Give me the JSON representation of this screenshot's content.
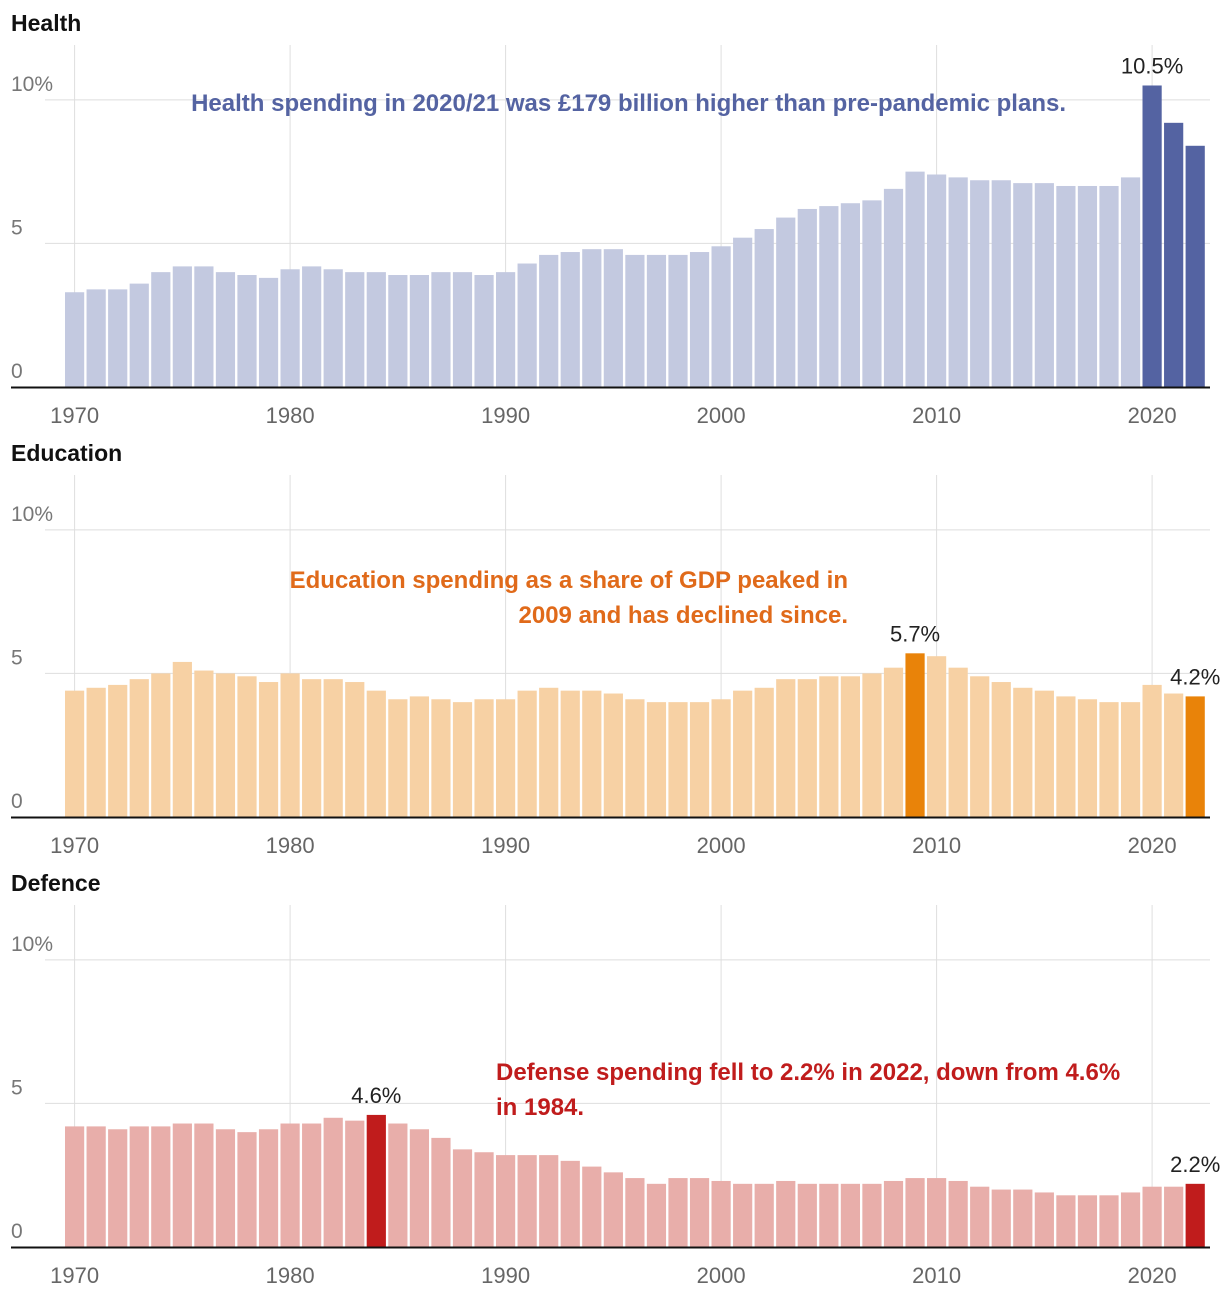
{
  "chart_data": [
    {
      "type": "bar",
      "title": "Health",
      "x": [
        1970,
        1971,
        1972,
        1973,
        1974,
        1975,
        1976,
        1977,
        1978,
        1979,
        1980,
        1981,
        1982,
        1983,
        1984,
        1985,
        1986,
        1987,
        1988,
        1989,
        1990,
        1991,
        1992,
        1993,
        1994,
        1995,
        1996,
        1997,
        1998,
        1999,
        2000,
        2001,
        2002,
        2003,
        2004,
        2005,
        2006,
        2007,
        2008,
        2009,
        2010,
        2011,
        2012,
        2013,
        2014,
        2015,
        2016,
        2017,
        2018,
        2019,
        2020,
        2021,
        2022
      ],
      "values": [
        3.3,
        3.4,
        3.4,
        3.6,
        4.0,
        4.2,
        4.2,
        4.0,
        3.9,
        3.8,
        4.1,
        4.2,
        4.1,
        4.0,
        4.0,
        3.9,
        3.9,
        4.0,
        4.0,
        3.9,
        4.0,
        4.3,
        4.6,
        4.7,
        4.8,
        4.8,
        4.6,
        4.6,
        4.6,
        4.7,
        4.9,
        5.2,
        5.5,
        5.9,
        6.2,
        6.3,
        6.4,
        6.5,
        6.9,
        7.5,
        7.4,
        7.3,
        7.2,
        7.2,
        7.1,
        7.1,
        7.0,
        7.0,
        7.0,
        7.3,
        10.5,
        9.2,
        8.4
      ],
      "highlight": [
        2020,
        2021,
        2022
      ],
      "base_color": "#c3c9e0",
      "highlight_color": "#5463a2",
      "ylim": [
        0,
        10.9
      ],
      "yticks": [
        0,
        5,
        10
      ],
      "ytick_labels": [
        "0",
        "5",
        "10%"
      ],
      "xticks": [
        1970,
        1980,
        1990,
        2000,
        2010,
        2020
      ],
      "labels": [
        {
          "year": 2020,
          "text": "10.5%"
        }
      ],
      "annotation": "Health spending in 2020/21 was £179 billion higher than pre-pandemic plans.",
      "annotation_color": "#5463a2"
    },
    {
      "type": "bar",
      "title": "Education",
      "x": [
        1970,
        1971,
        1972,
        1973,
        1974,
        1975,
        1976,
        1977,
        1978,
        1979,
        1980,
        1981,
        1982,
        1983,
        1984,
        1985,
        1986,
        1987,
        1988,
        1989,
        1990,
        1991,
        1992,
        1993,
        1994,
        1995,
        1996,
        1997,
        1998,
        1999,
        2000,
        2001,
        2002,
        2003,
        2004,
        2005,
        2006,
        2007,
        2008,
        2009,
        2010,
        2011,
        2012,
        2013,
        2014,
        2015,
        2016,
        2017,
        2018,
        2019,
        2020,
        2021,
        2022
      ],
      "values": [
        4.4,
        4.5,
        4.6,
        4.8,
        5.0,
        5.4,
        5.1,
        5.0,
        4.9,
        4.7,
        5.0,
        4.8,
        4.8,
        4.7,
        4.4,
        4.1,
        4.2,
        4.1,
        4.0,
        4.1,
        4.1,
        4.4,
        4.5,
        4.4,
        4.4,
        4.3,
        4.1,
        4.0,
        4.0,
        4.0,
        4.1,
        4.4,
        4.5,
        4.8,
        4.8,
        4.9,
        4.9,
        5.0,
        5.2,
        5.7,
        5.6,
        5.2,
        4.9,
        4.7,
        4.5,
        4.4,
        4.2,
        4.1,
        4.0,
        4.0,
        4.6,
        4.3,
        4.2
      ],
      "highlight": [
        2009,
        2022
      ],
      "base_color": "#f7d1a4",
      "highlight_color": "#e98309",
      "ylim": [
        0,
        10.9
      ],
      "yticks": [
        0,
        5,
        10
      ],
      "ytick_labels": [
        "0",
        "5",
        "10%"
      ],
      "xticks": [
        1970,
        1980,
        1990,
        2000,
        2010,
        2020
      ],
      "labels": [
        {
          "year": 2009,
          "text": "5.7%"
        },
        {
          "year": 2022,
          "text": "4.2%"
        }
      ],
      "annotation": "Education spending as a share of GDP peaked in 2009 and has declined since.",
      "annotation_color": "#e06a1a"
    },
    {
      "type": "bar",
      "title": "Defence",
      "x": [
        1970,
        1971,
        1972,
        1973,
        1974,
        1975,
        1976,
        1977,
        1978,
        1979,
        1980,
        1981,
        1982,
        1983,
        1984,
        1985,
        1986,
        1987,
        1988,
        1989,
        1990,
        1991,
        1992,
        1993,
        1994,
        1995,
        1996,
        1997,
        1998,
        1999,
        2000,
        2001,
        2002,
        2003,
        2004,
        2005,
        2006,
        2007,
        2008,
        2009,
        2010,
        2011,
        2012,
        2013,
        2014,
        2015,
        2016,
        2017,
        2018,
        2019,
        2020,
        2021,
        2022
      ],
      "values": [
        4.2,
        4.2,
        4.1,
        4.2,
        4.2,
        4.3,
        4.3,
        4.1,
        4.0,
        4.1,
        4.3,
        4.3,
        4.5,
        4.4,
        4.6,
        4.3,
        4.1,
        3.8,
        3.4,
        3.3,
        3.2,
        3.2,
        3.2,
        3.0,
        2.8,
        2.6,
        2.4,
        2.2,
        2.4,
        2.4,
        2.3,
        2.2,
        2.2,
        2.3,
        2.2,
        2.2,
        2.2,
        2.2,
        2.3,
        2.4,
        2.4,
        2.3,
        2.1,
        2.0,
        2.0,
        1.9,
        1.8,
        1.8,
        1.8,
        1.9,
        2.1,
        2.1,
        2.2
      ],
      "highlight": [
        1984,
        2022
      ],
      "base_color": "#e8aeaa",
      "highlight_color": "#c01c1c",
      "ylim": [
        0,
        10.9
      ],
      "yticks": [
        0,
        5,
        10
      ],
      "ytick_labels": [
        "0",
        "5",
        "10%"
      ],
      "xticks": [
        1970,
        1980,
        1990,
        2000,
        2010,
        2020
      ],
      "labels": [
        {
          "year": 1984,
          "text": "4.6%"
        },
        {
          "year": 2022,
          "text": "2.2%"
        }
      ],
      "annotation": "Defense spending fell to 2.2% in 2022, down from 4.6% in 1984.",
      "annotation_color": "#c01c1c"
    }
  ]
}
